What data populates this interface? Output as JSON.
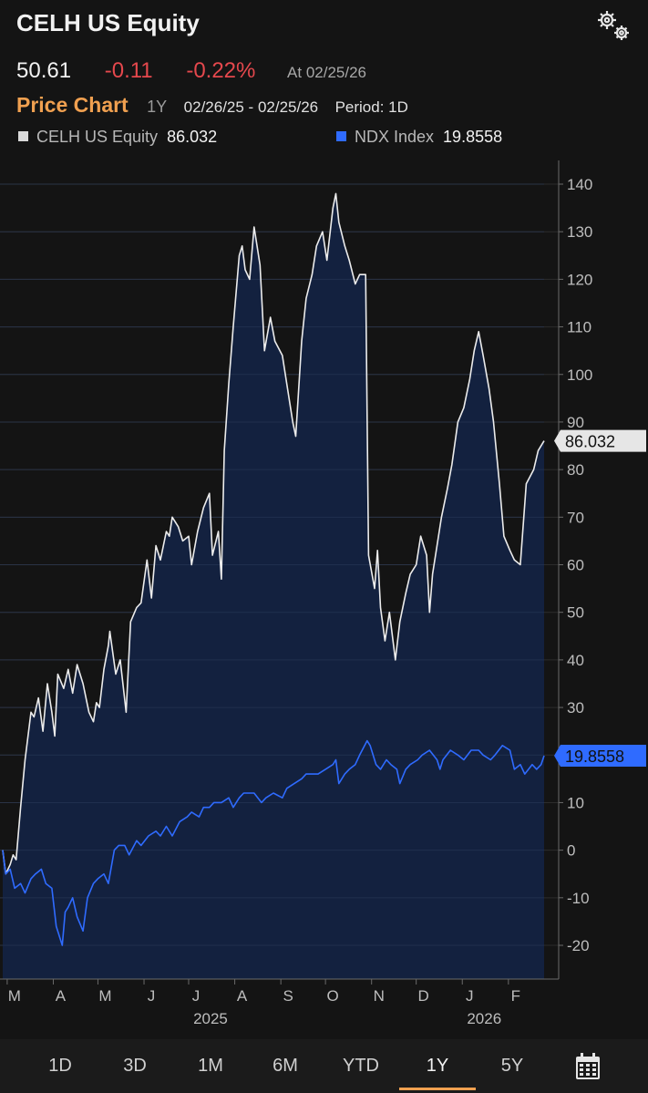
{
  "header": {
    "title": "CELH US Equity",
    "last_price": "50.61",
    "change": "-0.11",
    "change_pct": "-0.22%",
    "as_of": "At 02/25/26",
    "chart_label": "Price Chart",
    "range_label": "1Y",
    "date_range": "02/26/25 - 02/25/26",
    "period": "Period: 1D",
    "settings_icon": "gears-icon"
  },
  "legend": [
    {
      "name": "CELH US Equity",
      "value": "86.032",
      "color": "#d9d9d9"
    },
    {
      "name": "NDX Index",
      "value": "19.8558",
      "color": "#2f6bff"
    }
  ],
  "chart_data": {
    "type": "line",
    "title": "Price Chart",
    "x_range": [
      "2025-02-26",
      "2026-02-25"
    ],
    "ylim": [
      -26,
      146
    ],
    "y_ticks": [
      140,
      130,
      120,
      110,
      100,
      90,
      80,
      70,
      60,
      50,
      40,
      30,
      20,
      10,
      0,
      -10,
      -20
    ],
    "month_ticks": [
      {
        "label": "M",
        "date": "2025-03-01"
      },
      {
        "label": "A",
        "date": "2025-04-01"
      },
      {
        "label": "M",
        "date": "2025-05-01"
      },
      {
        "label": "J",
        "date": "2025-06-01"
      },
      {
        "label": "J",
        "date": "2025-07-01"
      },
      {
        "label": "A",
        "date": "2025-08-01"
      },
      {
        "label": "S",
        "date": "2025-09-01"
      },
      {
        "label": "O",
        "date": "2025-10-01"
      },
      {
        "label": "N",
        "date": "2025-11-01"
      },
      {
        "label": "D",
        "date": "2025-12-01"
      },
      {
        "label": "J",
        "date": "2026-01-01"
      },
      {
        "label": "F",
        "date": "2026-02-01"
      }
    ],
    "year_labels": [
      {
        "label": "2025",
        "date": "2025-07-01"
      },
      {
        "label": "2026",
        "date": "2026-01-01"
      }
    ],
    "grid": true,
    "series": [
      {
        "name": "CELH US Equity",
        "color": "#ececec",
        "fill": "#13213f",
        "last_value": "86.032",
        "points": [
          [
            "2025-02-26",
            0
          ],
          [
            "2025-02-28",
            -5
          ],
          [
            "2025-03-03",
            -3
          ],
          [
            "2025-03-05",
            -1
          ],
          [
            "2025-03-07",
            -2
          ],
          [
            "2025-03-10",
            9
          ],
          [
            "2025-03-13",
            19
          ],
          [
            "2025-03-17",
            29
          ],
          [
            "2025-03-19",
            28
          ],
          [
            "2025-03-22",
            32
          ],
          [
            "2025-03-25",
            25
          ],
          [
            "2025-03-28",
            35
          ],
          [
            "2025-03-31",
            29
          ],
          [
            "2025-04-02",
            24
          ],
          [
            "2025-04-04",
            37
          ],
          [
            "2025-04-08",
            34
          ],
          [
            "2025-04-11",
            38
          ],
          [
            "2025-04-14",
            33
          ],
          [
            "2025-04-17",
            39
          ],
          [
            "2025-04-21",
            35
          ],
          [
            "2025-04-25",
            29
          ],
          [
            "2025-04-28",
            27
          ],
          [
            "2025-04-30",
            31
          ],
          [
            "2025-05-02",
            30
          ],
          [
            "2025-05-05",
            38
          ],
          [
            "2025-05-08",
            43
          ],
          [
            "2025-05-09",
            46
          ],
          [
            "2025-05-13",
            37
          ],
          [
            "2025-05-16",
            40
          ],
          [
            "2025-05-20",
            29
          ],
          [
            "2025-05-23",
            48
          ],
          [
            "2025-05-27",
            51
          ],
          [
            "2025-05-30",
            52
          ],
          [
            "2025-06-03",
            61
          ],
          [
            "2025-06-06",
            53
          ],
          [
            "2025-06-09",
            64
          ],
          [
            "2025-06-12",
            61
          ],
          [
            "2025-06-16",
            67
          ],
          [
            "2025-06-18",
            66
          ],
          [
            "2025-06-20",
            70
          ],
          [
            "2025-06-24",
            68
          ],
          [
            "2025-06-27",
            65
          ],
          [
            "2025-07-01",
            66
          ],
          [
            "2025-07-03",
            60
          ],
          [
            "2025-07-07",
            67
          ],
          [
            "2025-07-11",
            72
          ],
          [
            "2025-07-15",
            75
          ],
          [
            "2025-07-17",
            62
          ],
          [
            "2025-07-21",
            67
          ],
          [
            "2025-07-23",
            57
          ],
          [
            "2025-07-25",
            84
          ],
          [
            "2025-07-28",
            98
          ],
          [
            "2025-07-31",
            110
          ],
          [
            "2025-08-04",
            125
          ],
          [
            "2025-08-06",
            127
          ],
          [
            "2025-08-08",
            122
          ],
          [
            "2025-08-11",
            120
          ],
          [
            "2025-08-14",
            131
          ],
          [
            "2025-08-18",
            123
          ],
          [
            "2025-08-21",
            105
          ],
          [
            "2025-08-25",
            112
          ],
          [
            "2025-08-28",
            107
          ],
          [
            "2025-09-02",
            104
          ],
          [
            "2025-09-05",
            98
          ],
          [
            "2025-09-09",
            90
          ],
          [
            "2025-09-11",
            87
          ],
          [
            "2025-09-15",
            107
          ],
          [
            "2025-09-18",
            116
          ],
          [
            "2025-09-22",
            121
          ],
          [
            "2025-09-25",
            127
          ],
          [
            "2025-09-29",
            130
          ],
          [
            "2025-10-02",
            124
          ],
          [
            "2025-10-06",
            135
          ],
          [
            "2025-10-08",
            138
          ],
          [
            "2025-10-10",
            132
          ],
          [
            "2025-10-14",
            127
          ],
          [
            "2025-10-17",
            124
          ],
          [
            "2025-10-21",
            119
          ],
          [
            "2025-10-24",
            121
          ],
          [
            "2025-10-28",
            121
          ],
          [
            "2025-10-30",
            62
          ],
          [
            "2025-11-03",
            55
          ],
          [
            "2025-11-05",
            63
          ],
          [
            "2025-11-07",
            51
          ],
          [
            "2025-11-10",
            44
          ],
          [
            "2025-11-13",
            50
          ],
          [
            "2025-11-17",
            40
          ],
          [
            "2025-11-20",
            48
          ],
          [
            "2025-11-24",
            54
          ],
          [
            "2025-11-27",
            58
          ],
          [
            "2025-12-01",
            60
          ],
          [
            "2025-12-04",
            66
          ],
          [
            "2025-12-08",
            62
          ],
          [
            "2025-12-10",
            50
          ],
          [
            "2025-12-12",
            58
          ],
          [
            "2025-12-15",
            64
          ],
          [
            "2025-12-18",
            70
          ],
          [
            "2025-12-22",
            76
          ],
          [
            "2025-12-25",
            81
          ],
          [
            "2025-12-29",
            90
          ],
          [
            "2026-01-02",
            93
          ],
          [
            "2026-01-06",
            99
          ],
          [
            "2026-01-09",
            105
          ],
          [
            "2026-01-12",
            109
          ],
          [
            "2026-01-15",
            104
          ],
          [
            "2026-01-19",
            97
          ],
          [
            "2026-01-22",
            90
          ],
          [
            "2026-01-26",
            77
          ],
          [
            "2026-01-29",
            66
          ],
          [
            "2026-02-02",
            63
          ],
          [
            "2026-02-05",
            61
          ],
          [
            "2026-02-09",
            60
          ],
          [
            "2026-02-13",
            77
          ],
          [
            "2026-02-18",
            80
          ],
          [
            "2026-02-21",
            84
          ],
          [
            "2026-02-25",
            86.032
          ]
        ]
      },
      {
        "name": "NDX Index",
        "color": "#2f6bff",
        "last_value": "19.8558",
        "points": [
          [
            "2025-02-26",
            0
          ],
          [
            "2025-02-28",
            -5
          ],
          [
            "2025-03-03",
            -4
          ],
          [
            "2025-03-06",
            -8
          ],
          [
            "2025-03-10",
            -7
          ],
          [
            "2025-03-13",
            -9
          ],
          [
            "2025-03-17",
            -6
          ],
          [
            "2025-03-20",
            -5
          ],
          [
            "2025-03-24",
            -4
          ],
          [
            "2025-03-27",
            -7
          ],
          [
            "2025-03-31",
            -8
          ],
          [
            "2025-04-03",
            -16
          ],
          [
            "2025-04-07",
            -20
          ],
          [
            "2025-04-09",
            -13
          ],
          [
            "2025-04-11",
            -12
          ],
          [
            "2025-04-14",
            -10
          ],
          [
            "2025-04-17",
            -14
          ],
          [
            "2025-04-21",
            -17
          ],
          [
            "2025-04-24",
            -10
          ],
          [
            "2025-04-28",
            -7
          ],
          [
            "2025-05-01",
            -6
          ],
          [
            "2025-05-05",
            -5
          ],
          [
            "2025-05-08",
            -7
          ],
          [
            "2025-05-12",
            0
          ],
          [
            "2025-05-15",
            1
          ],
          [
            "2025-05-19",
            1
          ],
          [
            "2025-05-22",
            -1
          ],
          [
            "2025-05-27",
            2
          ],
          [
            "2025-05-30",
            1
          ],
          [
            "2025-06-04",
            3
          ],
          [
            "2025-06-09",
            4
          ],
          [
            "2025-06-12",
            3
          ],
          [
            "2025-06-16",
            5
          ],
          [
            "2025-06-20",
            3
          ],
          [
            "2025-06-25",
            6
          ],
          [
            "2025-06-30",
            7
          ],
          [
            "2025-07-03",
            8
          ],
          [
            "2025-07-08",
            7
          ],
          [
            "2025-07-11",
            9
          ],
          [
            "2025-07-15",
            9
          ],
          [
            "2025-07-18",
            10
          ],
          [
            "2025-07-23",
            10
          ],
          [
            "2025-07-28",
            11
          ],
          [
            "2025-07-31",
            9
          ],
          [
            "2025-08-04",
            11
          ],
          [
            "2025-08-07",
            12
          ],
          [
            "2025-08-11",
            12
          ],
          [
            "2025-08-14",
            12
          ],
          [
            "2025-08-19",
            10
          ],
          [
            "2025-08-22",
            11
          ],
          [
            "2025-08-27",
            12
          ],
          [
            "2025-09-02",
            11
          ],
          [
            "2025-09-05",
            13
          ],
          [
            "2025-09-10",
            14
          ],
          [
            "2025-09-15",
            15
          ],
          [
            "2025-09-18",
            16
          ],
          [
            "2025-09-23",
            16
          ],
          [
            "2025-09-26",
            16
          ],
          [
            "2025-10-01",
            17
          ],
          [
            "2025-10-06",
            18
          ],
          [
            "2025-10-08",
            19
          ],
          [
            "2025-10-10",
            14
          ],
          [
            "2025-10-14",
            16
          ],
          [
            "2025-10-17",
            17
          ],
          [
            "2025-10-21",
            18
          ],
          [
            "2025-10-24",
            20
          ],
          [
            "2025-10-29",
            23
          ],
          [
            "2025-10-31",
            22
          ],
          [
            "2025-11-04",
            18
          ],
          [
            "2025-11-07",
            17
          ],
          [
            "2025-11-11",
            19
          ],
          [
            "2025-11-14",
            18
          ],
          [
            "2025-11-18",
            17
          ],
          [
            "2025-11-20",
            14
          ],
          [
            "2025-11-24",
            17
          ],
          [
            "2025-11-27",
            18
          ],
          [
            "2025-12-02",
            19
          ],
          [
            "2025-12-05",
            20
          ],
          [
            "2025-12-10",
            21
          ],
          [
            "2025-12-15",
            19
          ],
          [
            "2025-12-17",
            17
          ],
          [
            "2025-12-19",
            19
          ],
          [
            "2025-12-24",
            21
          ],
          [
            "2025-12-29",
            20
          ],
          [
            "2026-01-02",
            19
          ],
          [
            "2026-01-07",
            21
          ],
          [
            "2026-01-12",
            21
          ],
          [
            "2026-01-15",
            20
          ],
          [
            "2026-01-20",
            19
          ],
          [
            "2026-01-23",
            20
          ],
          [
            "2026-01-28",
            22
          ],
          [
            "2026-02-02",
            21
          ],
          [
            "2026-02-05",
            17
          ],
          [
            "2026-02-09",
            18
          ],
          [
            "2026-02-12",
            16
          ],
          [
            "2026-02-17",
            18
          ],
          [
            "2026-02-20",
            17
          ],
          [
            "2026-02-23",
            18
          ],
          [
            "2026-02-25",
            19.8558
          ]
        ]
      }
    ]
  },
  "tabs": [
    {
      "label": "1D",
      "selected": false
    },
    {
      "label": "3D",
      "selected": false
    },
    {
      "label": "1M",
      "selected": false
    },
    {
      "label": "6M",
      "selected": false
    },
    {
      "label": "YTD",
      "selected": false
    },
    {
      "label": "1Y",
      "selected": true
    },
    {
      "label": "5Y",
      "selected": false
    }
  ],
  "calendar_icon": "calendar-icon"
}
